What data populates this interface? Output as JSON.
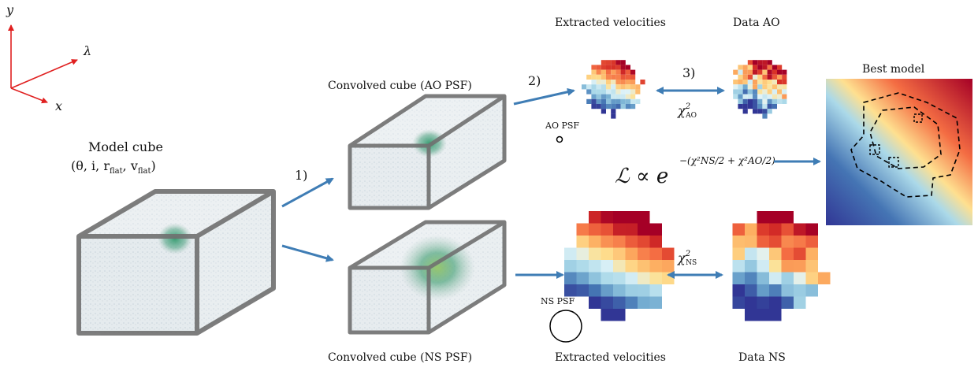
{
  "axes": {
    "y": "y",
    "lambda": "λ",
    "x": "x"
  },
  "model_cube": {
    "title": "Model cube",
    "params": "(θ, i, r",
    "p_flat1": "flat",
    "p_sep": ", v",
    "p_flat2": "flat",
    "p_end": ")"
  },
  "steps": {
    "s1": "1)",
    "s2": "2)",
    "s3": "3)"
  },
  "cube_ao_label": "Convolved cube (AO PSF)",
  "cube_ns_label": "Convolved cube (NS PSF)",
  "ao_psf_label": "AO PSF",
  "ns_psf_label": "NS PSF",
  "extracted_ao_label": "Extracted velocities",
  "data_ao_label": "Data AO",
  "extracted_ns_label": "Extracted velocities",
  "data_ns_label": "Data NS",
  "best_model_label": "Best model",
  "chi_ao": {
    "base": "χ",
    "sup": "2",
    "sub": "AO"
  },
  "chi_ns": {
    "base": "χ",
    "sup": "2",
    "sub": "NS"
  },
  "likelihood": {
    "lhs": "ℒ ∝ e",
    "exponent": "−(χ²NS/2 + χ²AO/2)"
  },
  "colors": {
    "arrow": "#3f7db5",
    "cube_edge": "#6b6b6b",
    "cube_fill": "#c9d6de",
    "blob": "#3c9a78",
    "diverging_low": "#313695",
    "diverging_high": "#a50026"
  }
}
